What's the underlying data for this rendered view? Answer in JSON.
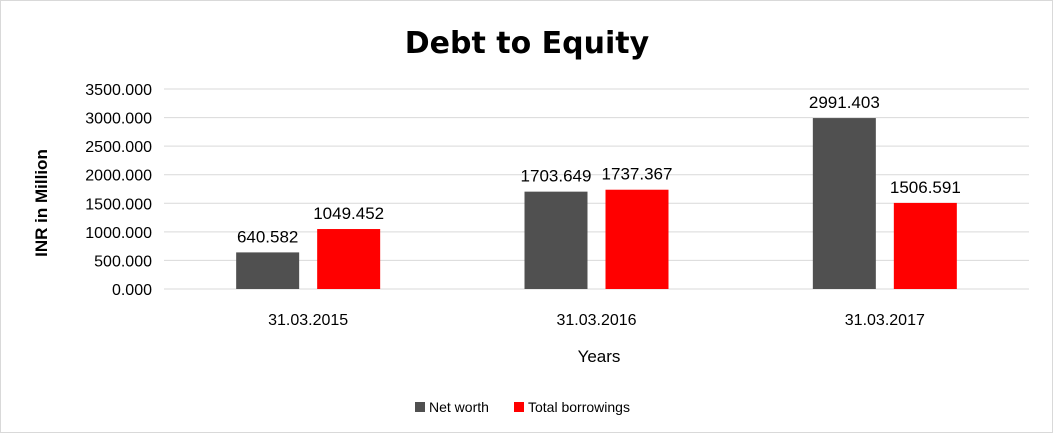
{
  "chart_data": {
    "type": "bar",
    "title": "Debt to Equity",
    "xlabel": "Years",
    "ylabel": "INR in Million",
    "categories": [
      "31.03.2015",
      "31.03.2016",
      "31.03.2017"
    ],
    "series": [
      {
        "name": "Net worth",
        "color": "#505050",
        "values": [
          640.582,
          1703.649,
          2991.403
        ],
        "labels": [
          "640.582",
          "1703.649",
          "2991.403"
        ]
      },
      {
        "name": "Total borrowings",
        "color": "#ff0000",
        "values": [
          1049.452,
          1737.367,
          1506.591
        ],
        "labels": [
          "1049.452",
          "1737.367",
          "1506.591"
        ]
      }
    ],
    "ylim": [
      0,
      3500
    ],
    "yticks": [
      "0.000",
      "500.000",
      "1000.000",
      "1500.000",
      "2000.000",
      "2500.000",
      "3000.000",
      "3500.000"
    ],
    "grid": true,
    "legend_position": "bottom"
  }
}
